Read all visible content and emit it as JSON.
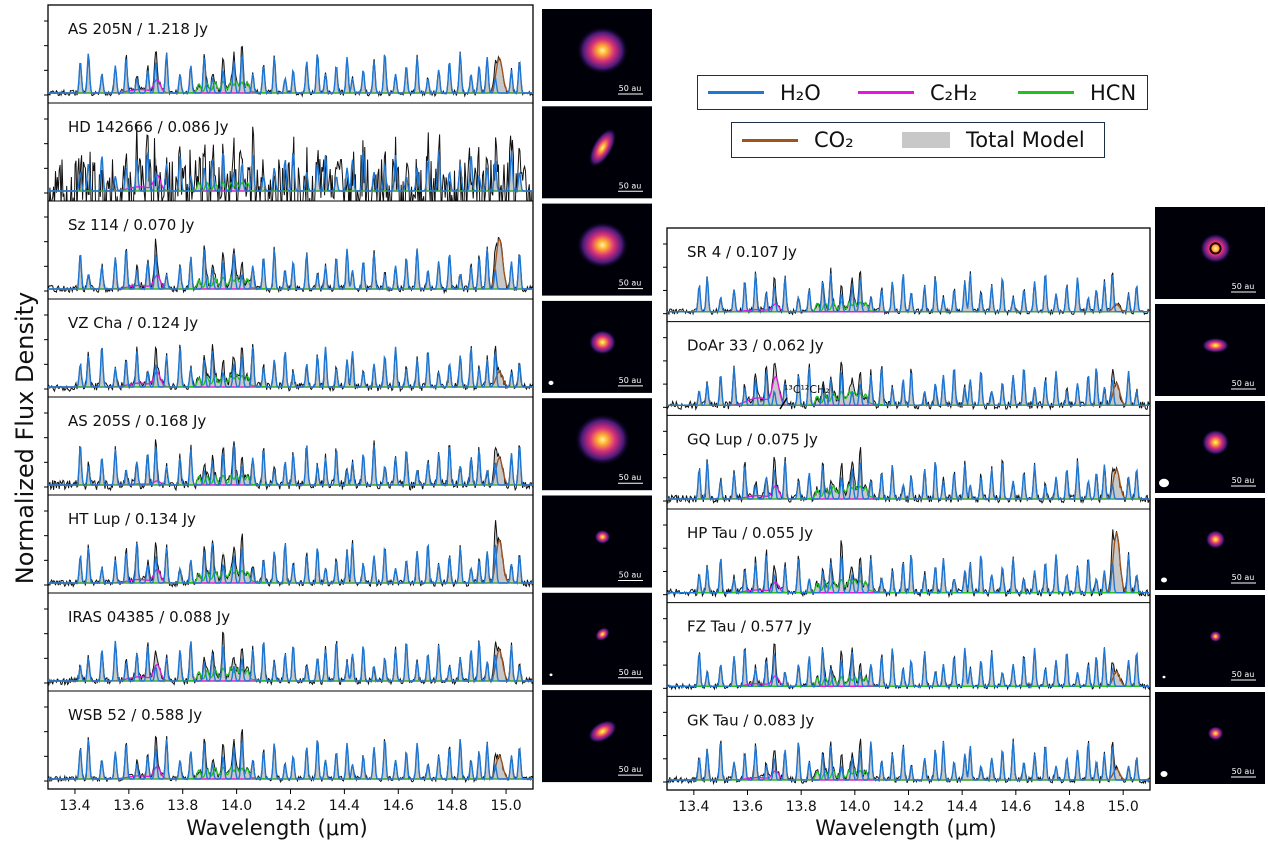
{
  "figure": {
    "ylabel": "Normalized Flux Density",
    "xlabel_left": "Wavelength (μm)",
    "xlabel_right": "Wavelength (μm)",
    "annotation": "¹³C¹²CH₂"
  },
  "legend": {
    "entries": [
      {
        "name": "H2O",
        "label": "H₂O",
        "color": "#1f77d4"
      },
      {
        "name": "C2H2",
        "label": "C₂H₂",
        "color": "#e815e0"
      },
      {
        "name": "HCN",
        "label": "HCN",
        "color": "#1fc21f"
      },
      {
        "name": "CO2",
        "label": "CO₂",
        "color": "#a0521d"
      },
      {
        "name": "Total Model",
        "label": "Total Model",
        "color": "#c8c8c8"
      }
    ]
  },
  "colors": {
    "observed": "#111111",
    "h2o": "#1f77d4",
    "c2h2": "#e815e0",
    "hcn": "#1fc21f",
    "co2": "#a0521d",
    "model_fill": "#c8c8c8"
  },
  "chart_data": {
    "type": "line",
    "x_range": [
      13.3,
      15.1
    ],
    "x_ticks": [
      "13.4",
      "13.6",
      "13.8",
      "14.0",
      "14.2",
      "14.4",
      "14.6",
      "14.8",
      "15.0"
    ],
    "x_unit": "μm",
    "image_scale_label": "50 au",
    "panels_left": [
      {
        "source": "AS 205N",
        "flux": "1.218 Jy",
        "label": "AS 205N / 1.218 Jy"
      },
      {
        "source": "HD 142666",
        "flux": "0.086 Jy",
        "label": "HD 142666 / 0.086 Jy"
      },
      {
        "source": "Sz 114",
        "flux": "0.070 Jy",
        "label": "Sz 114 / 0.070 Jy"
      },
      {
        "source": "VZ Cha",
        "flux": "0.124 Jy",
        "label": "VZ Cha / 0.124 Jy"
      },
      {
        "source": "AS 205S",
        "flux": "0.168 Jy",
        "label": "AS 205S / 0.168 Jy"
      },
      {
        "source": "HT Lup",
        "flux": "0.134 Jy",
        "label": "HT Lup / 0.134 Jy"
      },
      {
        "source": "IRAS 04385",
        "flux": "0.088 Jy",
        "label": "IRAS 04385 / 0.088 Jy"
      },
      {
        "source": "WSB 52",
        "flux": "0.588 Jy",
        "label": "WSB 52 / 0.588 Jy"
      }
    ],
    "panels_right": [
      {
        "source": "SR 4",
        "flux": "0.107 Jy",
        "label": "SR 4 / 0.107 Jy"
      },
      {
        "source": "DoAr 33",
        "flux": "0.062 Jy",
        "label": "DoAr 33 / 0.062 Jy"
      },
      {
        "source": "GQ Lup",
        "flux": "0.075 Jy",
        "label": "GQ Lup / 0.075 Jy"
      },
      {
        "source": "HP Tau",
        "flux": "0.055 Jy",
        "label": "HP Tau / 0.055 Jy"
      },
      {
        "source": "FZ Tau",
        "flux": "0.577 Jy",
        "label": "FZ Tau / 0.577 Jy"
      },
      {
        "source": "GK Tau",
        "flux": "0.083 Jy",
        "label": "GK Tau / 0.083 Jy"
      }
    ]
  }
}
